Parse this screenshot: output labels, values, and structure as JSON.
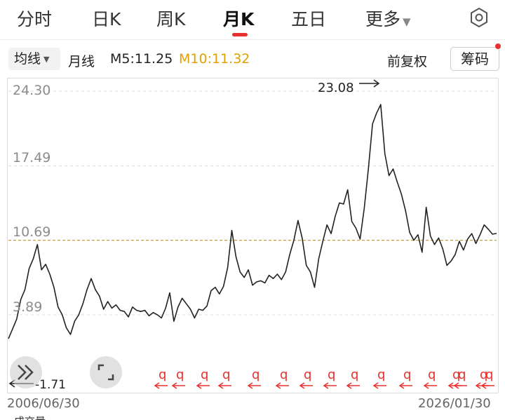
{
  "tabs": [
    {
      "label": "分时"
    },
    {
      "label": "日K"
    },
    {
      "label": "周K"
    },
    {
      "label": "月K",
      "active": true
    },
    {
      "label": "五日"
    },
    {
      "label": "更多"
    }
  ],
  "subbar": {
    "ma_button": "均线",
    "period": "月线",
    "m5": "M5:11.25",
    "m10": "M10:11.32",
    "adjust": "前复权",
    "chip": "筹码"
  },
  "colors": {
    "accent_red": "#e8312f",
    "m10_color": "#e0a100",
    "reference_line": "#b8860b",
    "price_line": "#222222",
    "marker_red": "#e8312f"
  },
  "chart_data": {
    "type": "line",
    "y_ticks": [
      "24.30",
      "17.49",
      "10.69",
      "3.89"
    ],
    "ylim": [
      -2.0,
      24.3
    ],
    "reference_value": 10.69,
    "max_label": "23.08",
    "min_label": "1.71",
    "x_start": "2006/06/30",
    "x_end": "2026/01/30",
    "marker_letter": "q",
    "marker_count": 21,
    "values": [
      1.71,
      2.6,
      3.5,
      5.3,
      6.2,
      8.1,
      9.0,
      10.3,
      8.0,
      8.5,
      7.6,
      6.4,
      4.6,
      3.9,
      2.7,
      2.1,
      3.3,
      3.9,
      4.9,
      6.2,
      7.2,
      6.2,
      5.6,
      4.4,
      5.1,
      4.5,
      4.8,
      4.3,
      4.2,
      3.7,
      4.6,
      4.3,
      4.2,
      4.3,
      3.8,
      4.1,
      3.9,
      3.6,
      4.5,
      5.9,
      3.3,
      4.6,
      5.4,
      4.9,
      4.4,
      3.6,
      4.4,
      4.3,
      4.7,
      6.1,
      6.4,
      5.8,
      6.5,
      8.2,
      11.6,
      9.2,
      7.8,
      7.3,
      8.0,
      6.6,
      6.9,
      7.0,
      6.8,
      7.5,
      7.2,
      7.6,
      7.1,
      7.8,
      9.4,
      10.7,
      12.5,
      10.9,
      8.4,
      7.8,
      6.4,
      9.0,
      10.6,
      12.1,
      11.3,
      12.9,
      14.1,
      14.0,
      15.3,
      12.4,
      11.8,
      10.8,
      13.6,
      17.2,
      21.3,
      22.3,
      23.08,
      18.6,
      16.6,
      17.2,
      16.0,
      14.9,
      13.4,
      11.4,
      10.7,
      11.2,
      9.6,
      13.7,
      11.1,
      10.3,
      10.9,
      9.9,
      8.4,
      8.8,
      9.4,
      10.6,
      9.8,
      10.8,
      11.3,
      10.4,
      11.2,
      12.1,
      11.7,
      11.25,
      11.32
    ]
  },
  "floating": {
    "expand_icon": "double-chevron-right-icon",
    "fullscreen_icon": "corner-brackets-icon"
  },
  "bottom_partial": {
    "left_text": "成交量"
  }
}
